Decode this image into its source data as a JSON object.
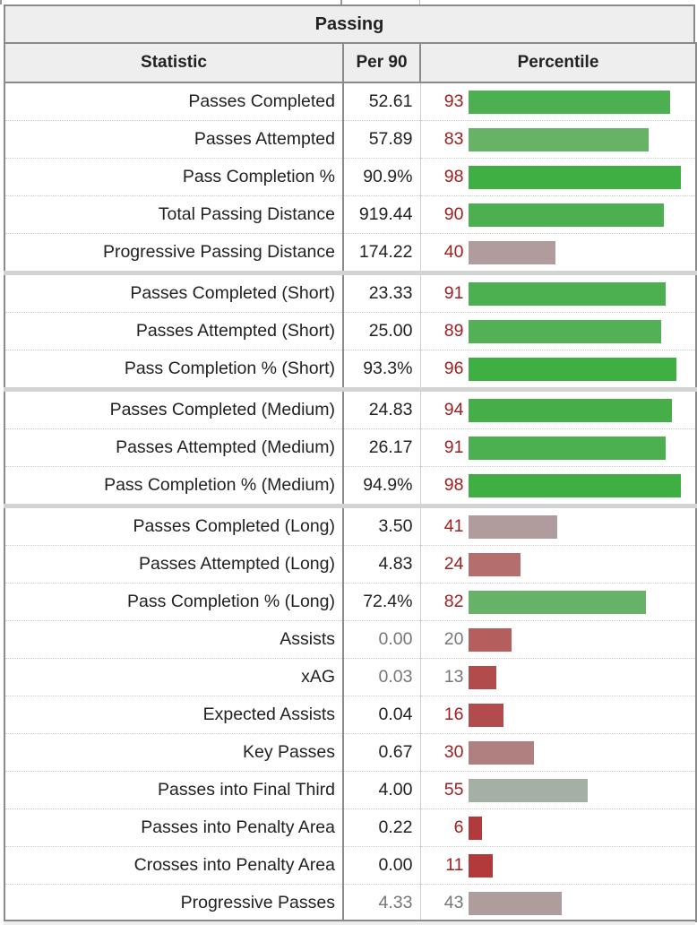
{
  "section_title": "Passing",
  "headers": {
    "statistic": "Statistic",
    "per90": "Per 90",
    "percentile": "Percentile"
  },
  "rows": [
    {
      "stat": "Passes Completed",
      "per90": "52.61",
      "pct": "93",
      "pct_value": 93,
      "bar_color": "#4caf50",
      "sep": false,
      "muted": false
    },
    {
      "stat": "Passes Attempted",
      "per90": "57.89",
      "pct": "83",
      "pct_value": 83,
      "bar_color": "#66b267",
      "sep": false,
      "muted": false
    },
    {
      "stat": "Pass Completion %",
      "per90": "90.9%",
      "pct": "98",
      "pct_value": 98,
      "bar_color": "#3fae43",
      "sep": false,
      "muted": false
    },
    {
      "stat": "Total Passing Distance",
      "per90": "919.44",
      "pct": "90",
      "pct_value": 90,
      "bar_color": "#4caf50",
      "sep": false,
      "muted": false
    },
    {
      "stat": "Progressive Passing Distance",
      "per90": "174.22",
      "pct": "40",
      "pct_value": 40,
      "bar_color": "#b09c9c",
      "sep": true,
      "muted": false
    },
    {
      "stat": "Passes Completed (Short)",
      "per90": "23.33",
      "pct": "91",
      "pct_value": 91,
      "bar_color": "#4caf50",
      "sep": false,
      "muted": false
    },
    {
      "stat": "Passes Attempted (Short)",
      "per90": "25.00",
      "pct": "89",
      "pct_value": 89,
      "bar_color": "#52b055",
      "sep": false,
      "muted": false
    },
    {
      "stat": "Pass Completion % (Short)",
      "per90": "93.3%",
      "pct": "96",
      "pct_value": 96,
      "bar_color": "#3fae43",
      "sep": true,
      "muted": false
    },
    {
      "stat": "Passes Completed (Medium)",
      "per90": "24.83",
      "pct": "94",
      "pct_value": 94,
      "bar_color": "#45ae48",
      "sep": false,
      "muted": false
    },
    {
      "stat": "Passes Attempted (Medium)",
      "per90": "26.17",
      "pct": "91",
      "pct_value": 91,
      "bar_color": "#4caf50",
      "sep": false,
      "muted": false
    },
    {
      "stat": "Pass Completion % (Medium)",
      "per90": "94.9%",
      "pct": "98",
      "pct_value": 98,
      "bar_color": "#3fae43",
      "sep": true,
      "muted": false
    },
    {
      "stat": "Passes Completed (Long)",
      "per90": "3.50",
      "pct": "41",
      "pct_value": 41,
      "bar_color": "#b09c9c",
      "sep": false,
      "muted": false
    },
    {
      "stat": "Passes Attempted (Long)",
      "per90": "4.83",
      "pct": "24",
      "pct_value": 24,
      "bar_color": "#b56e6e",
      "sep": false,
      "muted": false
    },
    {
      "stat": "Pass Completion % (Long)",
      "per90": "72.4%",
      "pct": "82",
      "pct_value": 82,
      "bar_color": "#66b267",
      "sep": false,
      "muted": false
    },
    {
      "stat": "Assists",
      "per90": "0.00",
      "pct": "20",
      "pct_value": 20,
      "bar_color": "#b45e5e",
      "sep": false,
      "muted": true
    },
    {
      "stat": "xAG",
      "per90": "0.03",
      "pct": "13",
      "pct_value": 13,
      "bar_color": "#b24c4c",
      "sep": false,
      "muted": true
    },
    {
      "stat": "Expected Assists",
      "per90": "0.04",
      "pct": "16",
      "pct_value": 16,
      "bar_color": "#b24c4c",
      "sep": false,
      "muted": false
    },
    {
      "stat": "Key Passes",
      "per90": "0.67",
      "pct": "30",
      "pct_value": 30,
      "bar_color": "#b07f7f",
      "sep": false,
      "muted": false
    },
    {
      "stat": "Passes into Final Third",
      "per90": "4.00",
      "pct": "55",
      "pct_value": 55,
      "bar_color": "#a3b0a3",
      "sep": false,
      "muted": false
    },
    {
      "stat": "Passes into Penalty Area",
      "per90": "0.22",
      "pct": "6",
      "pct_value": 6,
      "bar_color": "#b33a3a",
      "sep": false,
      "muted": false
    },
    {
      "stat": "Crosses into Penalty Area",
      "per90": "0.00",
      "pct": "11",
      "pct_value": 11,
      "bar_color": "#b33a3a",
      "sep": false,
      "muted": false
    },
    {
      "stat": "Progressive Passes",
      "per90": "4.33",
      "pct": "43",
      "pct_value": 43,
      "bar_color": "#b09c9c",
      "sep": false,
      "muted": true
    }
  ]
}
